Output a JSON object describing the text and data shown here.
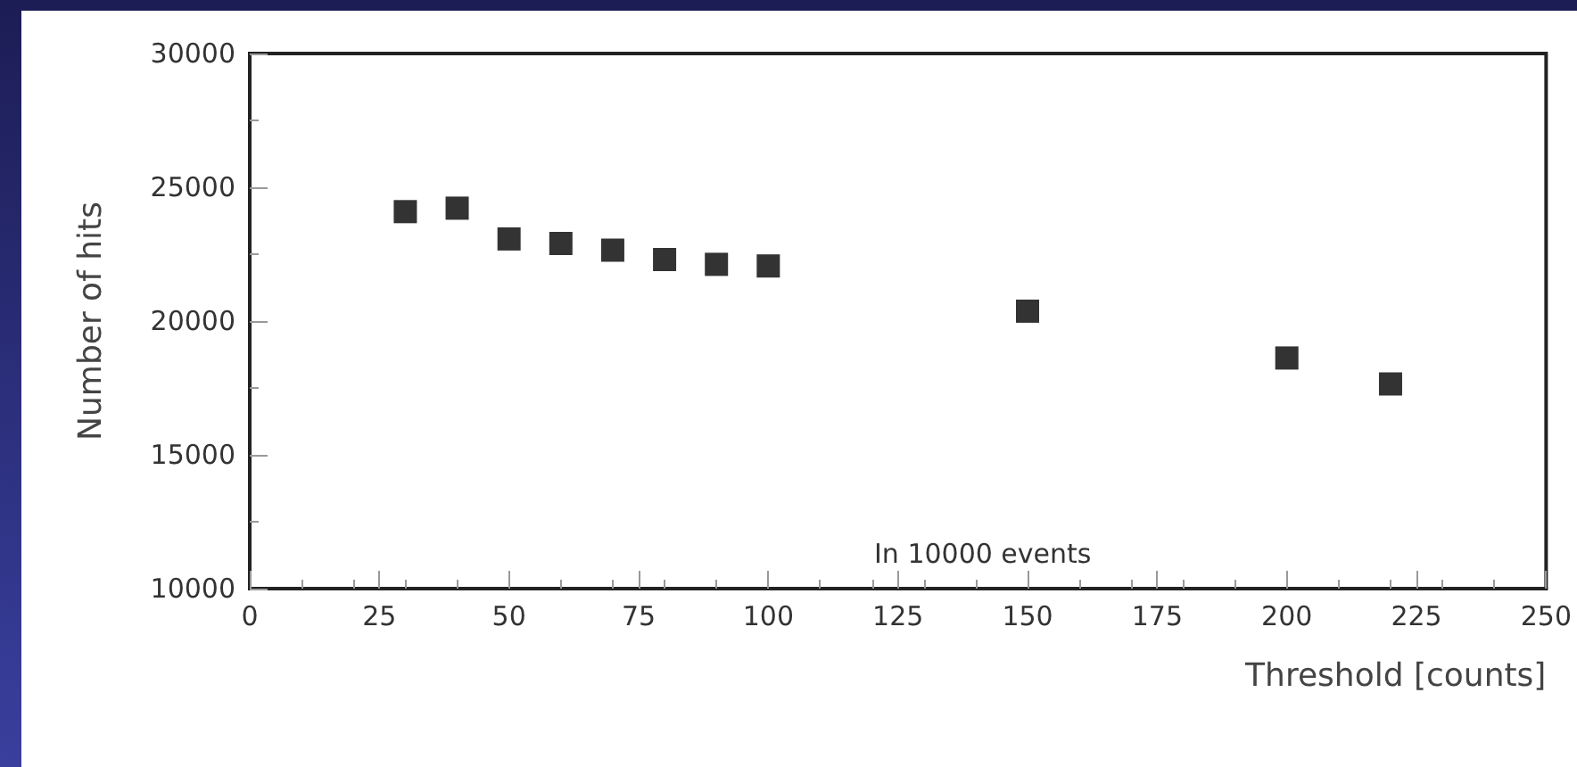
{
  "chart_data": {
    "type": "scatter",
    "xlabel": "Threshold [counts]",
    "ylabel": "Number of hits",
    "x": [
      30,
      40,
      50,
      60,
      70,
      80,
      90,
      100,
      150,
      200,
      220
    ],
    "series": [
      {
        "color": "#000000",
        "values": [
          24090,
          24220,
          23070,
          22900,
          22650,
          22300,
          22120,
          22060,
          20370,
          18620,
          17650
        ]
      }
    ],
    "xlim": [
      0,
      250
    ],
    "xticks": [
      0,
      25,
      50,
      75,
      100,
      125,
      150,
      175,
      200,
      225,
      250
    ],
    "ylim": [
      10000,
      30000
    ],
    "yticks": [
      10000,
      15000,
      20000,
      25000,
      30000
    ],
    "marker": "square",
    "grid": false,
    "annotations": [
      "In 10000 events"
    ]
  }
}
